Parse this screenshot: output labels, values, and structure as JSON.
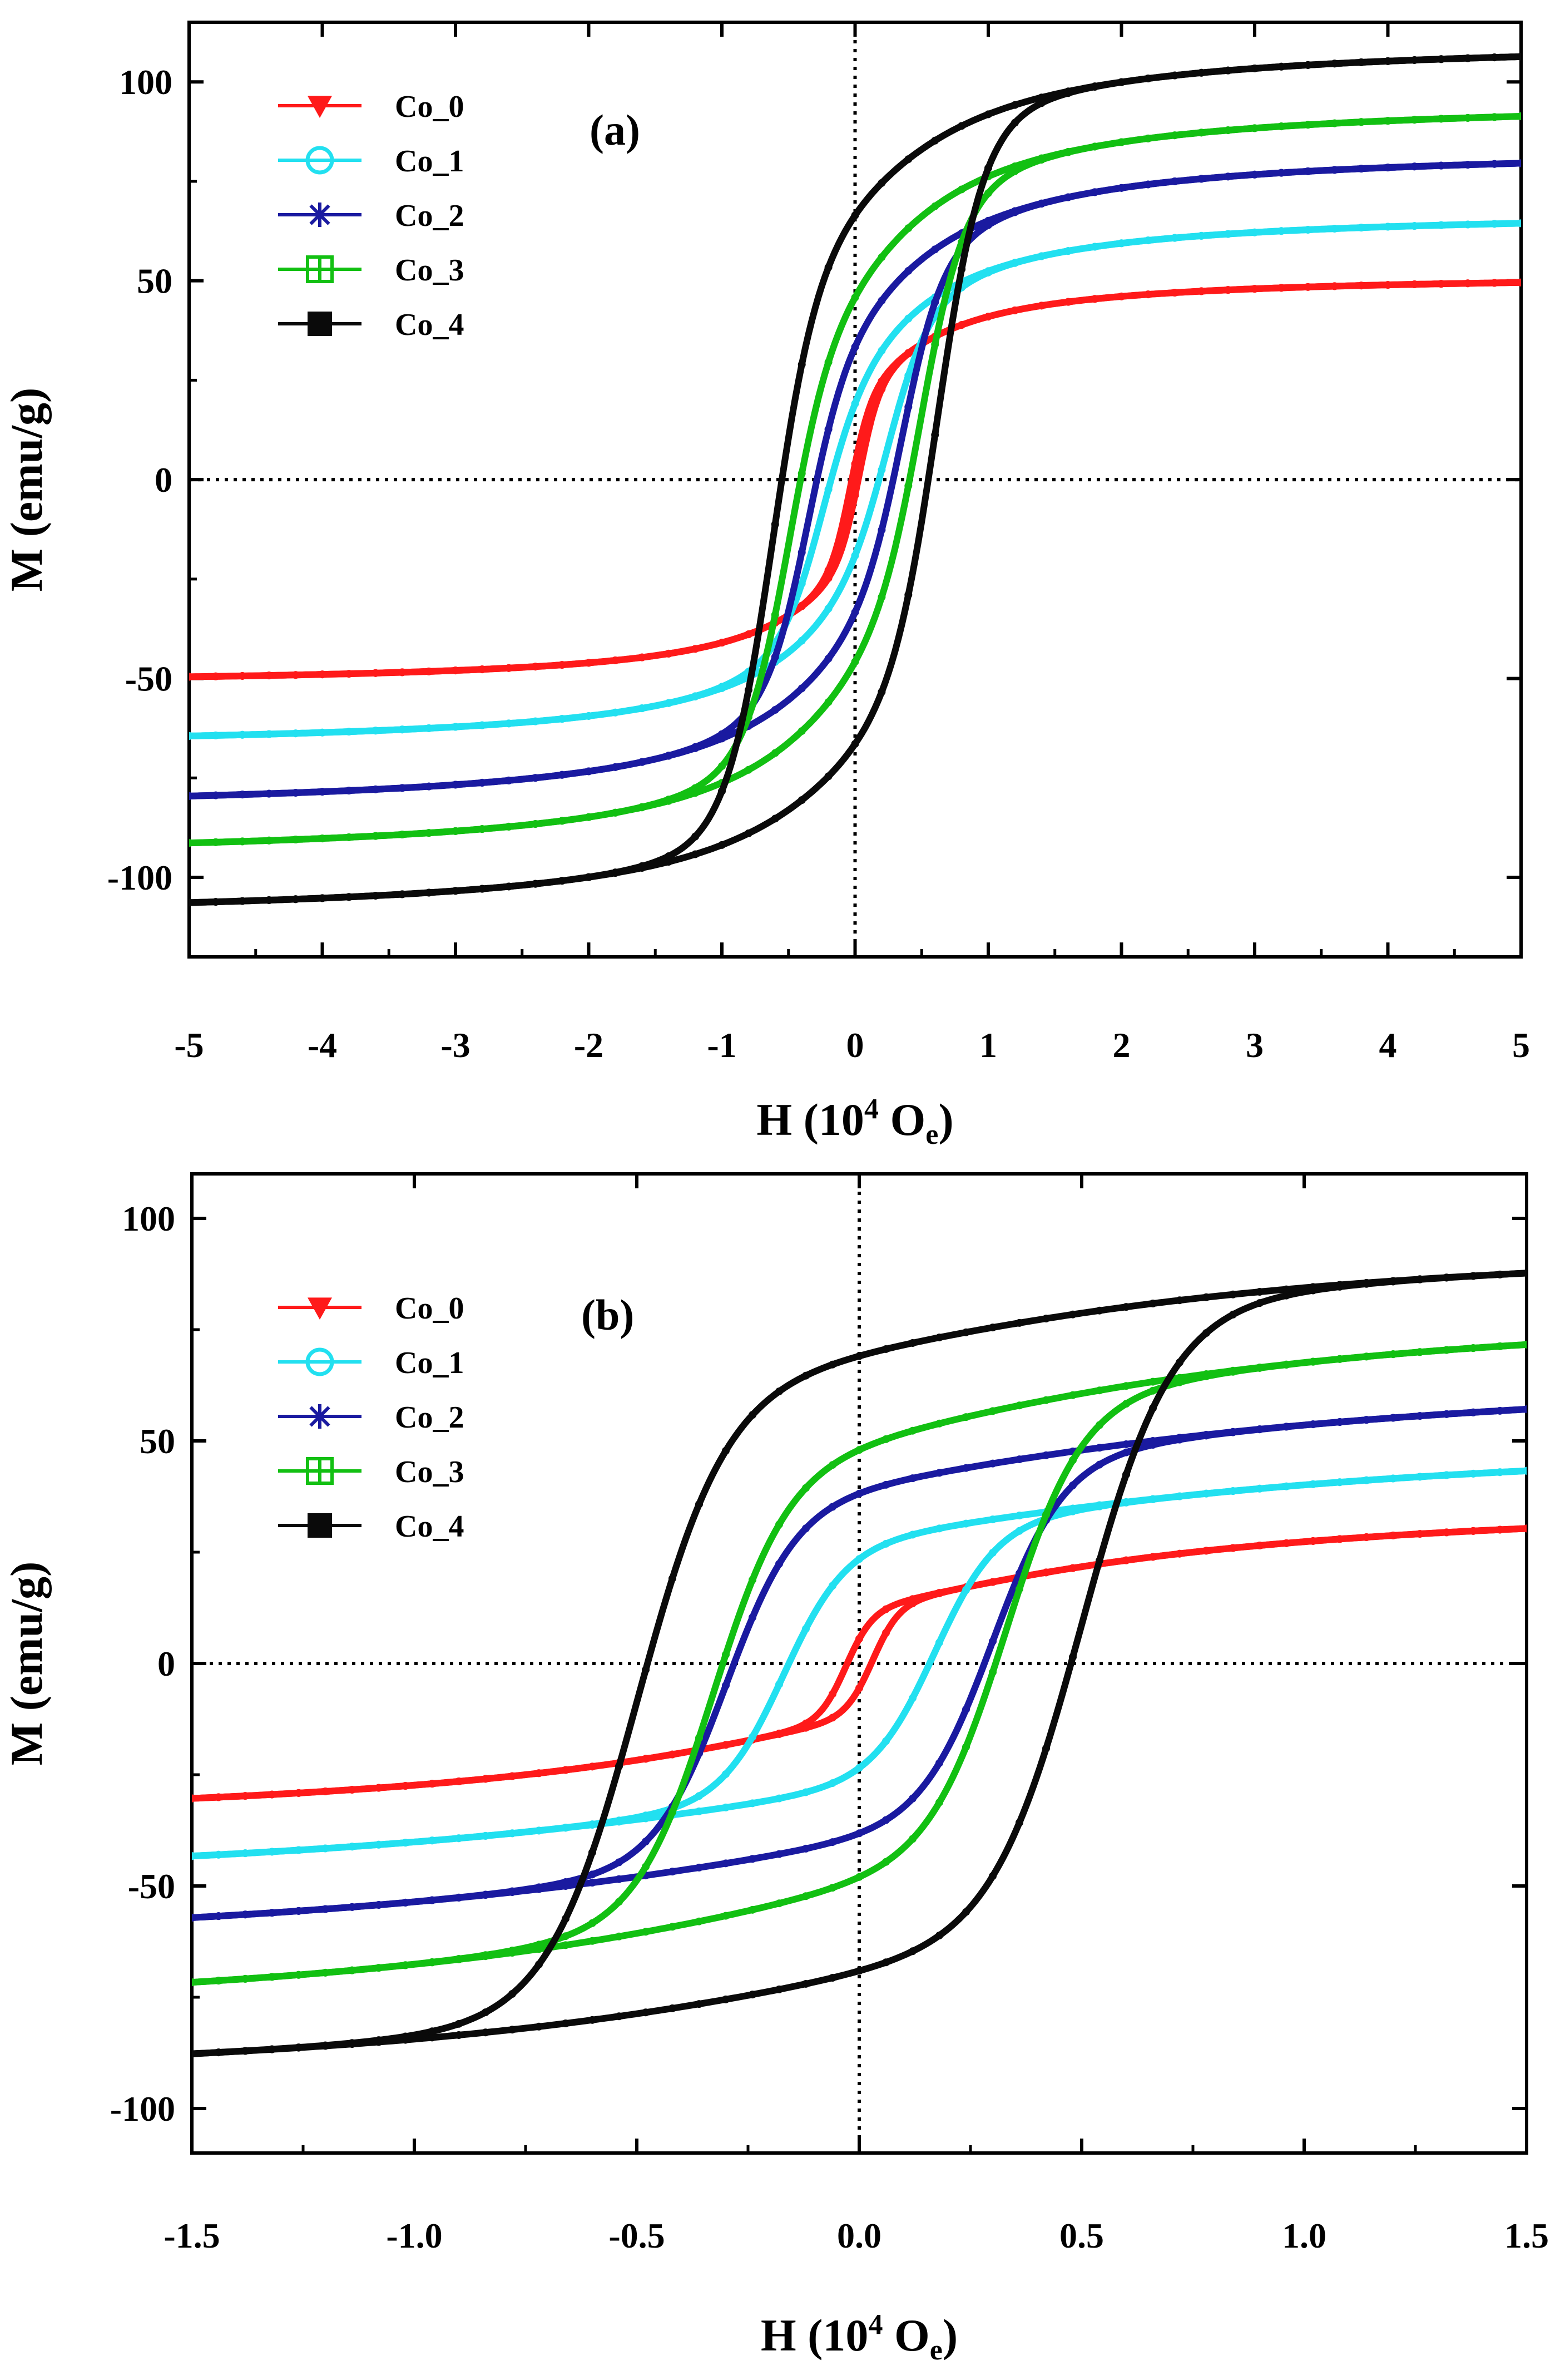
{
  "chart_data": [
    {
      "type": "line",
      "panel_label": "(a)",
      "xlabel": "H (10",
      "xlabel_sup": "4",
      "xlabel_unit": " O",
      "xlabel_sub": "e",
      "xlabel_close": ")",
      "ylabel": "M (emu/g)",
      "xlim": [
        -5,
        5
      ],
      "ylim": [
        -120,
        115
      ],
      "xticks": [
        -5,
        -4,
        -3,
        -2,
        -1,
        0,
        1,
        2,
        3,
        4,
        5
      ],
      "xtick_labels": [
        "-5",
        "-4",
        "-3",
        "-2",
        "-1",
        "0",
        "1",
        "2",
        "3",
        "4",
        "5"
      ],
      "yticks": [
        -100,
        -50,
        0,
        50,
        100
      ],
      "ytick_labels": [
        "-100",
        "-50",
        "0",
        "50",
        "100"
      ],
      "zero_lines": true,
      "legend_position": "top-left",
      "series": [
        {
          "name": "Co_0",
          "color": "#ff1a1a",
          "marker": "triangle-down",
          "Ms": 52,
          "Mr": 20,
          "Hc": 0.03,
          "Hk": 0.15,
          "alpha": 0.12
        },
        {
          "name": "Co_1",
          "color": "#22e0f0",
          "marker": "circle-open",
          "Ms": 68,
          "Mr": 28,
          "Hc": 0.25,
          "Hk": 0.3,
          "alpha": 0.14
        },
        {
          "name": "Co_2",
          "color": "#1a1aa0",
          "marker": "asterisk",
          "Ms": 84,
          "Mr": 40,
          "Hc": 0.36,
          "Hk": 0.3,
          "alpha": 0.16
        },
        {
          "name": "Co_3",
          "color": "#12c012",
          "marker": "square-cross",
          "Ms": 96,
          "Mr": 50,
          "Hc": 0.5,
          "Hk": 0.32,
          "alpha": 0.16
        },
        {
          "name": "Co_4",
          "color": "#0a0a0a",
          "marker": "square",
          "Ms": 111,
          "Mr": 70,
          "Hc": 0.62,
          "Hk": 0.34,
          "alpha": 0.18
        }
      ]
    },
    {
      "type": "line",
      "panel_label": "(b)",
      "xlabel": "H (10",
      "xlabel_sup": "4",
      "xlabel_unit": " O",
      "xlabel_sub": "e",
      "xlabel_close": ")",
      "ylabel": "M (emu/g)",
      "xlim": [
        -1.5,
        1.5
      ],
      "ylim": [
        -110,
        110
      ],
      "xticks": [
        -1.5,
        -1.0,
        -0.5,
        0.0,
        0.5,
        1.0,
        1.5
      ],
      "xtick_labels": [
        "-1.5",
        "-1.0",
        "-0.5",
        "0.0",
        "0.5",
        "1.0",
        "1.5"
      ],
      "yticks": [
        -100,
        -50,
        0,
        50,
        100
      ],
      "ytick_labels": [
        "-100",
        "-50",
        "0",
        "50",
        "100"
      ],
      "zero_lines": true,
      "legend_position": "top-left",
      "series": [
        {
          "name": "Co_0",
          "color": "#ff1a1a",
          "marker": "triangle-down",
          "Ms": 38,
          "Mr": 12,
          "Hc": 0.03,
          "Hk": 0.06,
          "alpha": 0.5
        },
        {
          "name": "Co_1",
          "color": "#22e0f0",
          "marker": "circle-open",
          "Ms": 53,
          "Mr": 28,
          "Hc": 0.17,
          "Hk": 0.14,
          "alpha": 0.7
        },
        {
          "name": "Co_2",
          "color": "#1a1aa0",
          "marker": "asterisk",
          "Ms": 68,
          "Mr": 40,
          "Hc": 0.3,
          "Hk": 0.16,
          "alpha": 0.7
        },
        {
          "name": "Co_3",
          "color": "#12c012",
          "marker": "square-cross",
          "Ms": 83,
          "Mr": 50,
          "Hc": 0.33,
          "Hk": 0.17,
          "alpha": 0.6
        },
        {
          "name": "Co_4",
          "color": "#0a0a0a",
          "marker": "square",
          "Ms": 97,
          "Mr": 70,
          "Hc": 0.5,
          "Hk": 0.2,
          "alpha": 0.6
        }
      ]
    }
  ]
}
